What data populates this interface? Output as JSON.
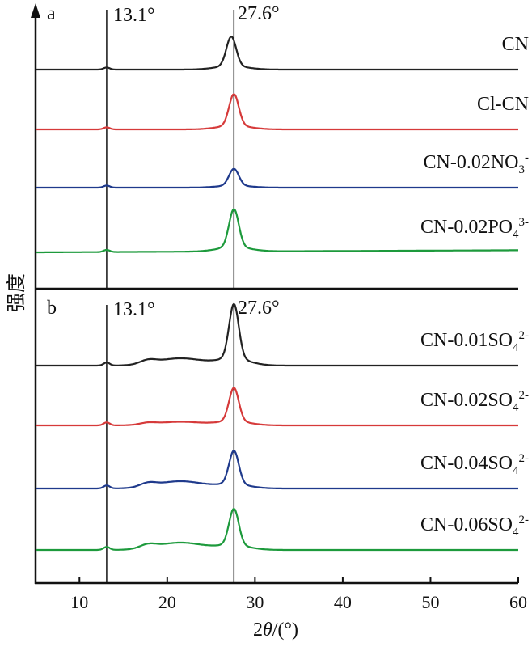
{
  "chart_data": {
    "type": "line",
    "xlabel_parts": {
      "pre": "2",
      "theta": "θ",
      "post": "/(°)"
    },
    "ylabel": "强度",
    "x_ticks": [
      10,
      20,
      30,
      40,
      50,
      60
    ],
    "xlim": [
      5,
      60
    ],
    "panels": [
      {
        "label": "a",
        "ref_lines": [
          {
            "x": 13.1,
            "label": "13.1°"
          },
          {
            "x": 27.6,
            "label": "27.6°"
          }
        ],
        "series": [
          {
            "name": "CN",
            "name_parts": {
              "main": "CN",
              "sub": "",
              "sup": ""
            },
            "color": "#222222",
            "baseline_start": 0.0,
            "baseline_end": 0.0,
            "peak13": 0.05,
            "peak27": 0.7,
            "peak27_center": 27.3,
            "hump": 0.0
          },
          {
            "name": "Cl-CN",
            "name_parts": {
              "main": "Cl-CN",
              "sub": "",
              "sup": ""
            },
            "color": "#d63a3a",
            "baseline_start": 0.0,
            "baseline_end": 0.0,
            "peak13": 0.05,
            "peak27": 0.75,
            "peak27_center": 27.6,
            "hump": 0.0
          },
          {
            "name": "CN-0.02NO3-",
            "name_parts": {
              "main": "CN-0.02NO",
              "sub": "3",
              "sup": "-"
            },
            "color": "#1f3a8c",
            "baseline_start": 0.0,
            "baseline_end": 0.0,
            "peak13": 0.05,
            "peak27": 0.4,
            "peak27_center": 27.6,
            "hump": 0.0
          },
          {
            "name": "CN-0.02PO43-",
            "name_parts": {
              "main": "CN-0.02PO",
              "sub": "4",
              "sup": "3-"
            },
            "color": "#1d9a3c",
            "baseline_start": 0.0,
            "baseline_end": 0.05,
            "peak13": 0.05,
            "peak27": 0.9,
            "peak27_center": 27.6,
            "hump": 0.0
          }
        ]
      },
      {
        "label": "b",
        "ref_lines": [
          {
            "x": 13.1,
            "label": "13.1°"
          },
          {
            "x": 27.6,
            "label": "27.6°"
          }
        ],
        "series": [
          {
            "name": "CN-0.01SO42-",
            "name_parts": {
              "main": "CN-0.01SO",
              "sub": "4",
              "sup": "2-"
            },
            "color": "#222222",
            "baseline_start": 0.0,
            "baseline_end": 0.0,
            "peak13": 0.05,
            "peak27": 0.9,
            "peak27_center": 27.6,
            "hump": 0.12
          },
          {
            "name": "CN-0.02SO42-",
            "name_parts": {
              "main": "CN-0.02SO",
              "sub": "4",
              "sup": "2-"
            },
            "color": "#d63a3a",
            "baseline_start": 0.0,
            "baseline_end": 0.0,
            "peak13": 0.05,
            "peak27": 0.55,
            "peak27_center": 27.6,
            "hump": 0.06
          },
          {
            "name": "CN-0.04SO42-",
            "name_parts": {
              "main": "CN-0.04SO",
              "sub": "4",
              "sup": "2-"
            },
            "color": "#1f3a8c",
            "baseline_start": 0.0,
            "baseline_end": 0.0,
            "peak13": 0.05,
            "peak27": 0.55,
            "peak27_center": 27.6,
            "hump": 0.12
          },
          {
            "name": "CN-0.06SO42-",
            "name_parts": {
              "main": "CN-0.06SO",
              "sub": "4",
              "sup": "2-"
            },
            "color": "#1d9a3c",
            "baseline_start": 0.0,
            "baseline_end": 0.0,
            "peak13": 0.05,
            "peak27": 0.6,
            "peak27_center": 27.6,
            "hump": 0.12
          }
        ]
      }
    ]
  }
}
